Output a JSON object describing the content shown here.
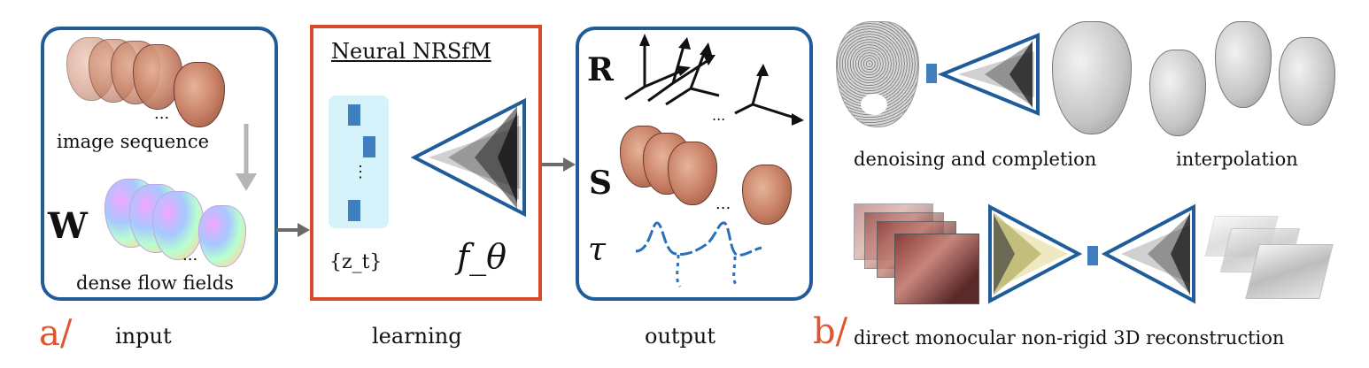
{
  "panel_a_label": "a/",
  "panel_b_label": "b/",
  "input": {
    "caption": "input",
    "image_sequence_label": "image sequence",
    "w_symbol": "W",
    "dense_flow_label": "dense flow fields",
    "ellipsis": "..."
  },
  "learning": {
    "caption": "learning",
    "title": "Neural NRSfM",
    "z_label": "{z_t}",
    "f_label": "f_θ",
    "vdots": "⋮"
  },
  "output": {
    "caption": "output",
    "r_symbol": "R",
    "s_symbol": "S",
    "tau_symbol": "τ"
  },
  "applications": {
    "denoising_label": "denoising and completion",
    "interpolation_label": "interpolation",
    "direct_label": "direct monocular non-rigid 3D reconstruction"
  },
  "colors": {
    "panel_border_blue": "#1f5c99",
    "panel_border_red": "#d94a2b",
    "label_orange": "#e0542f",
    "latent_fill": "#d5f3fb",
    "latent_block": "#3f7fbf",
    "arrow_gray": "#6b6b6b"
  }
}
